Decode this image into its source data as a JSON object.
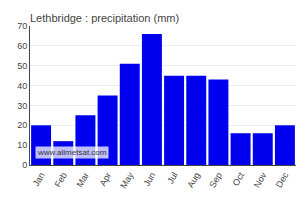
{
  "chart_data": {
    "type": "bar",
    "title": "Lethbridge : precipitation (mm)",
    "categories": [
      "Jan",
      "Feb",
      "Mar",
      "Apr",
      "May",
      "Jun",
      "Jul",
      "Aug",
      "Sep",
      "Oct",
      "Nov",
      "Dec"
    ],
    "values": [
      20,
      12,
      25,
      35,
      51,
      66,
      45,
      45,
      43,
      16,
      16,
      20
    ],
    "color": "#0000EE",
    "ylim": [
      0,
      70
    ],
    "yticks": [
      0,
      10,
      20,
      30,
      40,
      50,
      60,
      70
    ],
    "grid": true,
    "annotations": [
      "www.allmetsat.com"
    ]
  }
}
